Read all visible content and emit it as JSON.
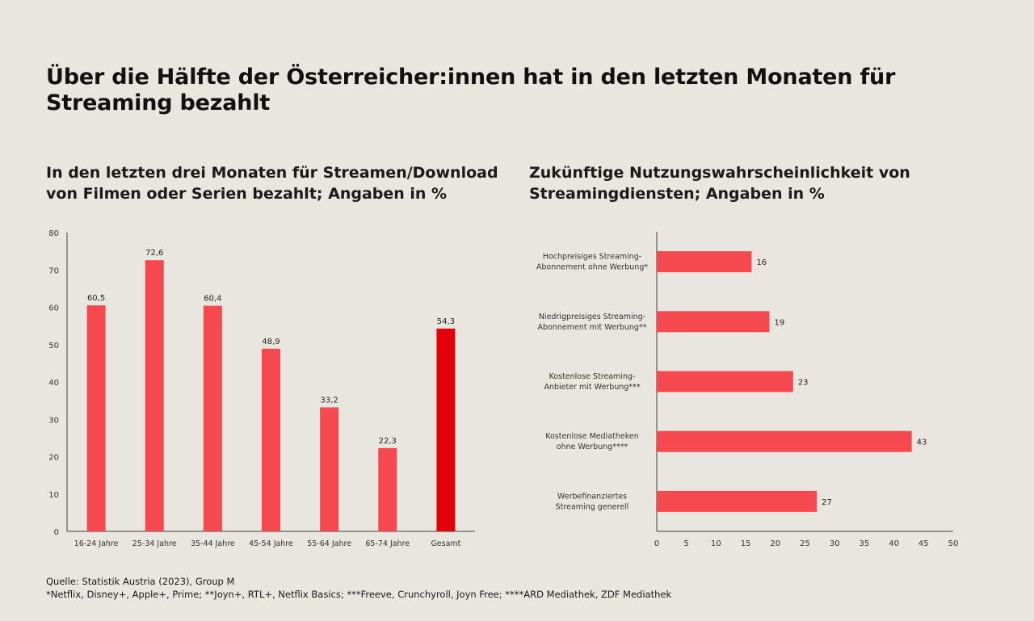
{
  "title": "Über die Hälfte der Österreicher:innen hat in den letzten Monaten für Streaming bezahlt",
  "footer": {
    "source": "Quelle: Statistik Austria (2023), Group M",
    "notes": "*Netflix, Disney+, Apple+, Prime; **Joyn+, RTL+, Netflix Basics; ***Freeve, Crunchyroll, Joyn Free; ****ARD Mediathek, ZDF Mediathek"
  },
  "colors": {
    "bar": "#f5484f",
    "highlight": "#e3000b",
    "axis": "#444444"
  },
  "chart_data": [
    {
      "type": "bar",
      "orientation": "vertical",
      "title": "In den letzten drei Monaten für Streamen/Download von Filmen oder Serien bezahlt; Angaben in %",
      "categories": [
        "16-24 Jahre",
        "25-34 Jahre",
        "35-44 Jahre",
        "45-54 Jahre",
        "55-64 Jahre",
        "65-74 Jahre",
        "Gesamt"
      ],
      "values": [
        60.5,
        72.6,
        60.4,
        48.9,
        33.2,
        22.3,
        54.3
      ],
      "data_labels": [
        "60,5",
        "72,6",
        "60,4",
        "48,9",
        "33,2",
        "22,3",
        "54,3"
      ],
      "highlight_category": "Gesamt",
      "ylim": [
        0,
        80
      ],
      "yticks": [
        0,
        10,
        20,
        30,
        40,
        50,
        60,
        70,
        80
      ],
      "grid": false
    },
    {
      "type": "bar",
      "orientation": "horizontal",
      "title": "Zukünftige Nutzungswahrscheinlichkeit von Streamingdiensten; Angaben in %",
      "categories": [
        [
          "Hochpreisiges Streaming-",
          "Abonnement ohne Werbung*"
        ],
        [
          "Niedrigpreisiges Streaming-",
          "Abonnement mit Werbung**"
        ],
        [
          "Kostenlose Streaming-",
          "Anbieter mit Werbung***"
        ],
        [
          "Kostenlose Mediatheken",
          "ohne Werbung****"
        ],
        [
          "Werbefinanziertes",
          "Streaming generell"
        ]
      ],
      "values": [
        16,
        19,
        23,
        43,
        27
      ],
      "data_labels": [
        "16",
        "19",
        "23",
        "43",
        "27"
      ],
      "xlim": [
        0,
        50
      ],
      "xticks": [
        0,
        5,
        10,
        15,
        20,
        25,
        30,
        35,
        40,
        45,
        50
      ],
      "grid": false
    }
  ]
}
